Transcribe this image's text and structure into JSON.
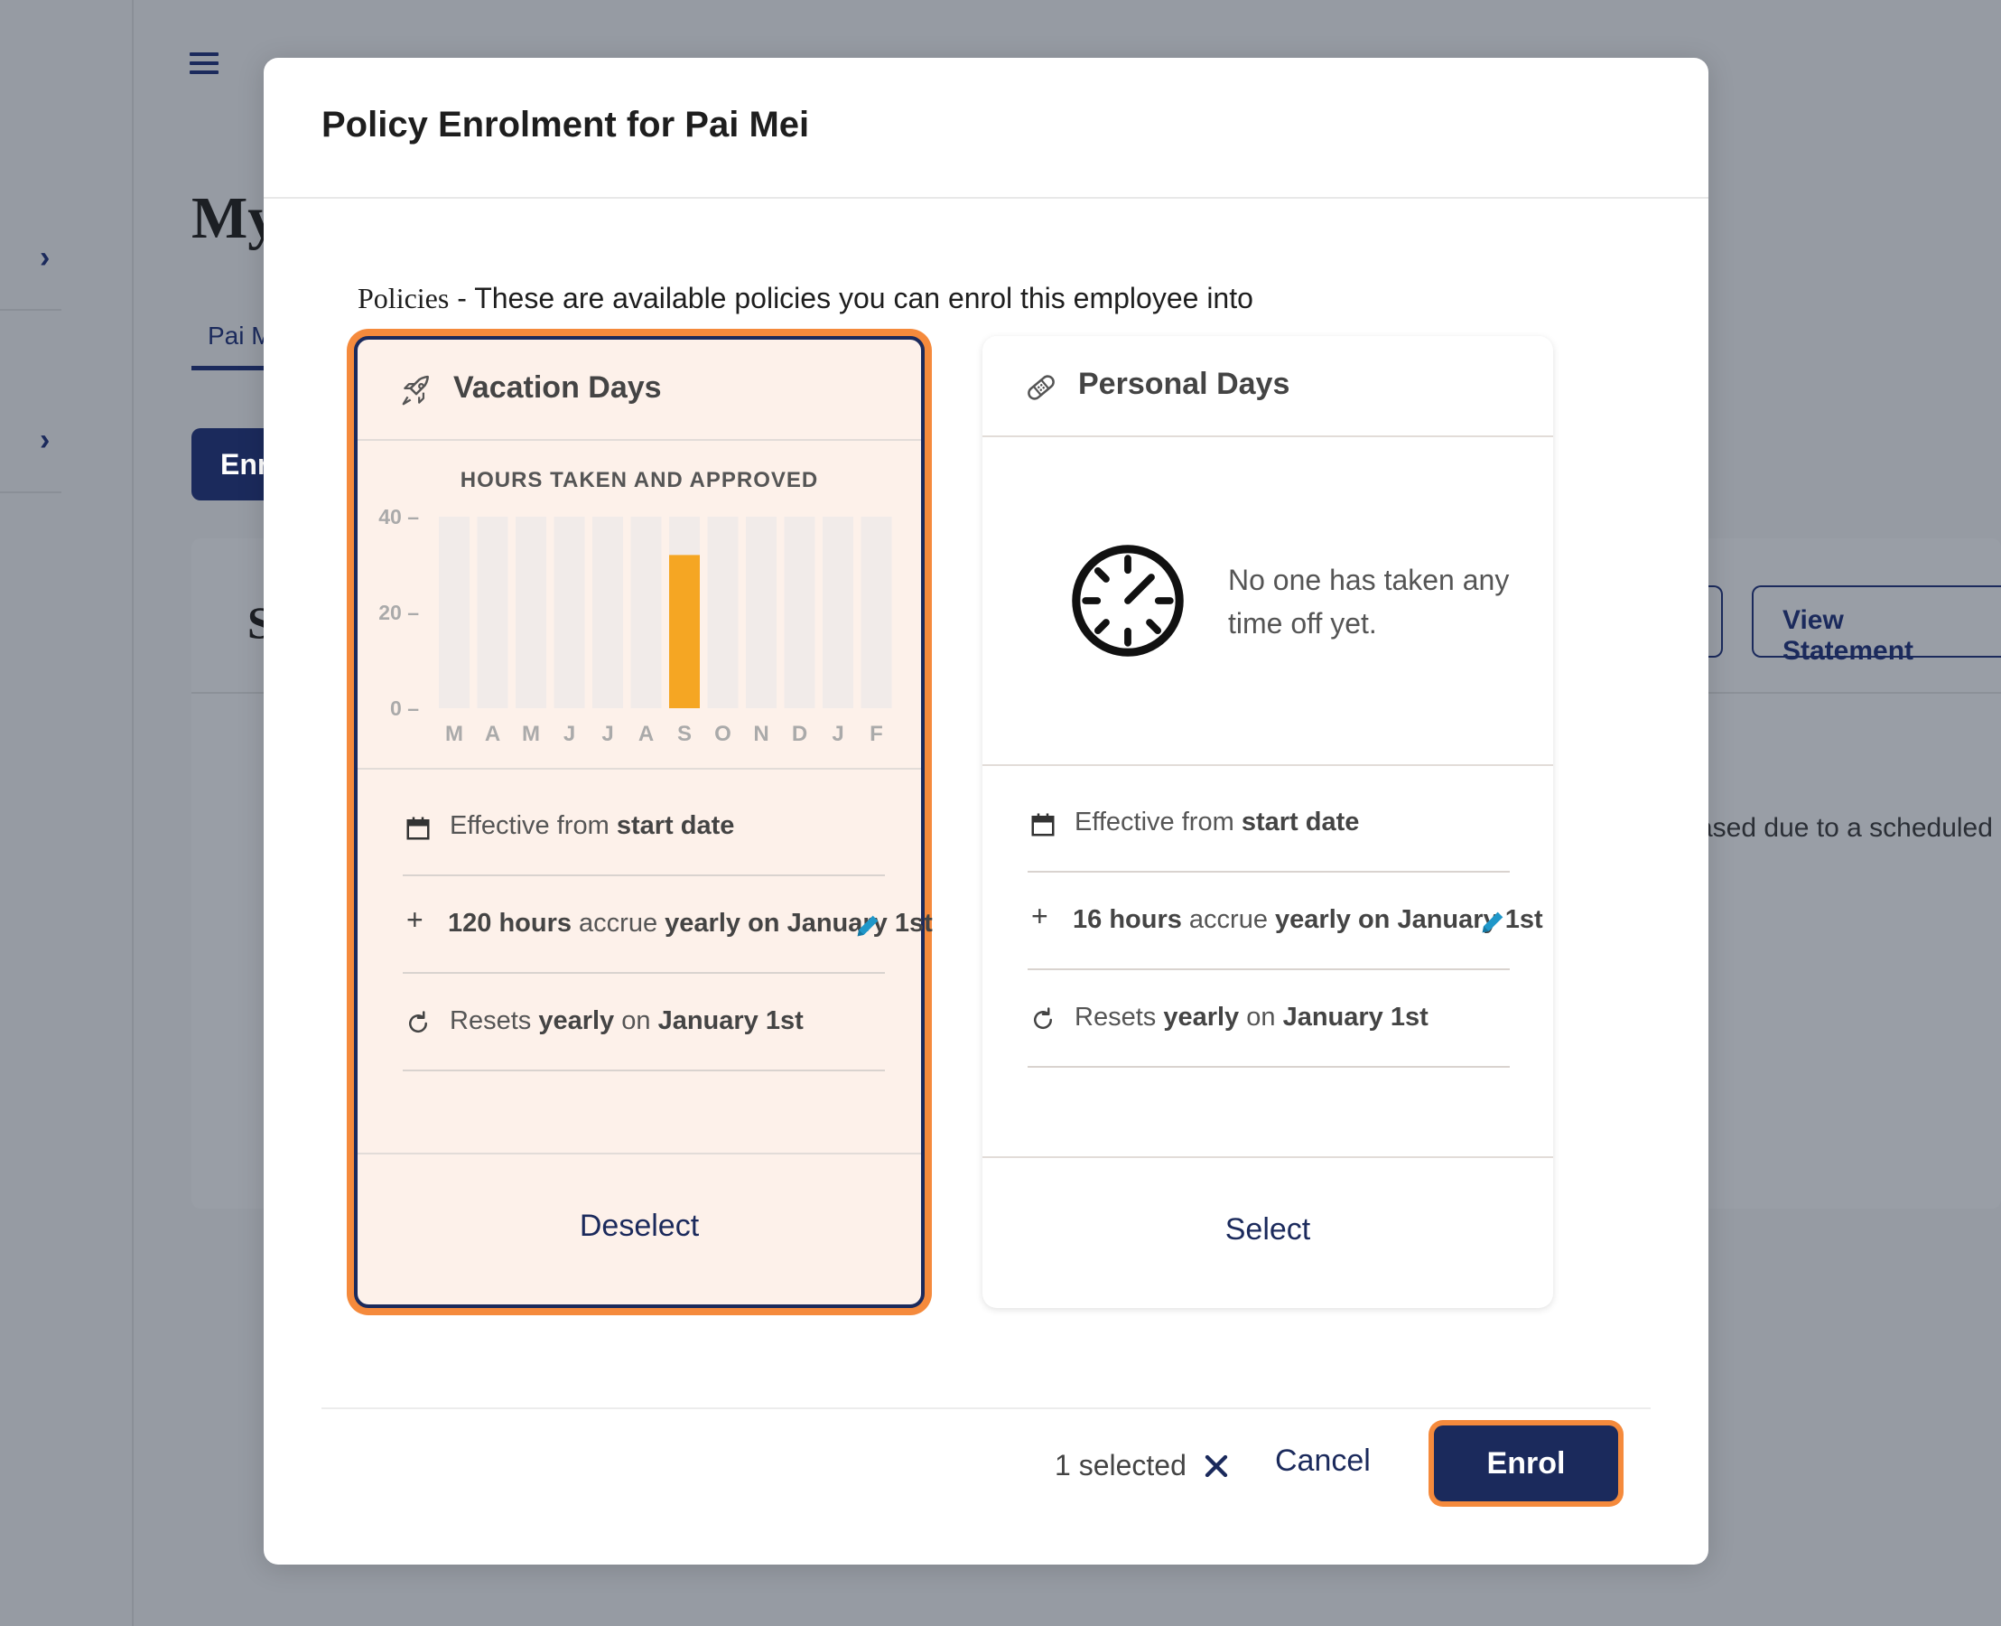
{
  "background": {
    "page_title": "My",
    "tab_label": "Pai M",
    "enrol_button": "Enr",
    "section_letter": "S",
    "view_statement": "View Statement",
    "notice_text": "ased due to a scheduled"
  },
  "modal": {
    "title": "Policy Enrolment for Pai Mei",
    "policies_heading": "Policies",
    "policies_desc": " - These are available policies you can enrol this employee into",
    "footer": {
      "selected_count": "1 selected",
      "cancel_label": "Cancel",
      "enrol_label": "Enrol"
    }
  },
  "cards": [
    {
      "name": "Vacation Days",
      "icon": "rocket-icon",
      "selected": true,
      "chart_title": "HOURS TAKEN AND APPROVED",
      "effective_prefix": "Effective from ",
      "effective_value": "start date",
      "accrual_amount": "120 hours",
      "accrual_mid": " accrue ",
      "accrual_freq": "yearly on January 1st",
      "reset_prefix": "Resets ",
      "reset_freq": "yearly",
      "reset_mid": " on ",
      "reset_date": "January 1st",
      "action_label": "Deselect"
    },
    {
      "name": "Personal Days",
      "icon": "bandage-icon",
      "selected": false,
      "empty_text": "No one has taken any time off yet.",
      "effective_prefix": "Effective from ",
      "effective_value": "start date",
      "accrual_amount": "16 hours",
      "accrual_mid": " accrue ",
      "accrual_freq": "yearly on January 1st",
      "reset_prefix": "Resets ",
      "reset_freq": "yearly",
      "reset_mid": " on ",
      "reset_date": "January 1st",
      "action_label": "Select"
    }
  ],
  "chart_data": {
    "type": "bar",
    "title": "HOURS TAKEN AND APPROVED",
    "categories": [
      "M",
      "A",
      "M",
      "J",
      "J",
      "A",
      "S",
      "O",
      "N",
      "D",
      "J",
      "F"
    ],
    "values": [
      0,
      0,
      0,
      0,
      0,
      0,
      32,
      0,
      0,
      0,
      0,
      0
    ],
    "ylim": [
      0,
      40
    ],
    "yticks": [
      0,
      20,
      40
    ],
    "bar_color": "#f5a623",
    "track_color": "#f1ebe9"
  }
}
